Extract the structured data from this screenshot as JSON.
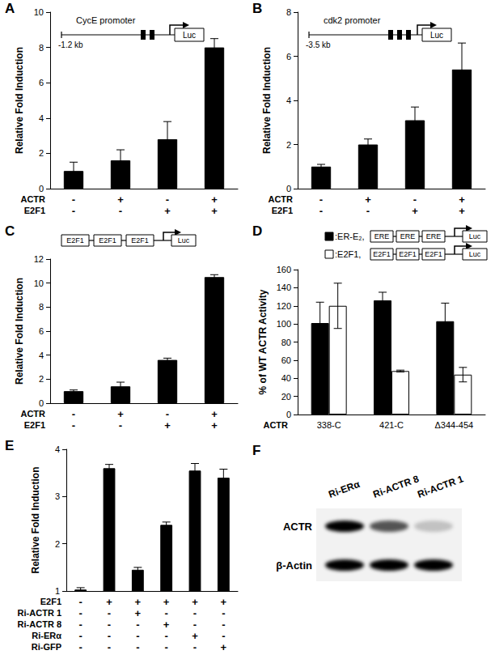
{
  "chart_data": [
    {
      "panel": "A",
      "type": "bar",
      "grid": false,
      "color": "#000000",
      "diagram": {
        "label": "CycE promoter",
        "start": "-1.2 kb",
        "sites": 2,
        "reporter": "Luc"
      },
      "y_label": "Relative Fold Induction",
      "categories": [
        null,
        null,
        null,
        null
      ],
      "conditions": [
        {
          "name": "ACTR",
          "values": [
            "-",
            "+",
            "-",
            "+"
          ]
        },
        {
          "name": "E2F1",
          "values": [
            "-",
            "-",
            "+",
            "+"
          ]
        }
      ],
      "values": [
        1.0,
        1.6,
        2.8,
        8.0
      ],
      "errors": [
        0.5,
        0.6,
        1.0,
        0.5
      ],
      "ylim": [
        0,
        10
      ],
      "yticks": [
        0,
        2,
        4,
        6,
        8,
        10
      ]
    },
    {
      "panel": "B",
      "type": "bar",
      "grid": false,
      "color": "#000000",
      "diagram": {
        "label": "cdk2 promoter",
        "start": "-3.5 kb",
        "sites": 3,
        "reporter": "Luc"
      },
      "y_label": "Relative Fold Induction",
      "categories": [
        null,
        null,
        null,
        null
      ],
      "conditions": [
        {
          "name": "ACTR",
          "values": [
            "-",
            "+",
            "-",
            "+"
          ]
        },
        {
          "name": "E2F1",
          "values": [
            "-",
            "-",
            "+",
            "+"
          ]
        }
      ],
      "values": [
        1.0,
        2.0,
        3.1,
        5.4
      ],
      "errors": [
        0.1,
        0.25,
        0.6,
        1.2
      ],
      "ylim": [
        0,
        8
      ],
      "yticks": [
        0,
        2,
        4,
        6,
        8
      ]
    },
    {
      "panel": "C",
      "type": "bar",
      "grid": false,
      "color": "#000000",
      "diagram": {
        "elements": [
          "E2F1",
          "E2F1",
          "E2F1"
        ],
        "reporter": "Luc"
      },
      "y_label": "Relative Fold Induction",
      "categories": [
        null,
        null,
        null,
        null
      ],
      "conditions": [
        {
          "name": "ACTR",
          "values": [
            "-",
            "+",
            "-",
            "+"
          ]
        },
        {
          "name": "E2F1",
          "values": [
            "-",
            "-",
            "+",
            "+"
          ]
        }
      ],
      "values": [
        1.0,
        1.4,
        3.6,
        10.5
      ],
      "errors": [
        0.1,
        0.35,
        0.15,
        0.2
      ],
      "ylim": [
        0,
        12
      ],
      "yticks": [
        0,
        2,
        4,
        6,
        8,
        10,
        12
      ]
    },
    {
      "panel": "D",
      "type": "bar",
      "grid": false,
      "y_label": "% of WT ACTR Activity",
      "x_label": "ACTR",
      "reporter": "Luc",
      "categories": [
        "338-C",
        "421-C",
        "Δ344-454"
      ],
      "series": [
        {
          "name": ":ER-E₂,",
          "color": "#000000",
          "elements": [
            "ERE",
            "ERE",
            "ERE"
          ],
          "values": [
            101,
            126,
            103
          ],
          "errors": [
            23,
            9,
            20
          ]
        },
        {
          "name": ":E2F1,",
          "color": "#ffffff",
          "elements": [
            "E2F1",
            "E2F1",
            "E2F1"
          ],
          "values": [
            120,
            48,
            44
          ],
          "errors": [
            25,
            1,
            8
          ]
        }
      ],
      "ylim": [
        0,
        160
      ],
      "yticks": [
        0,
        20,
        40,
        60,
        80,
        100,
        120,
        140,
        160
      ]
    },
    {
      "panel": "E",
      "type": "bar",
      "grid": false,
      "color": "#000000",
      "y_label": "Relative Fold Induction",
      "categories": [
        null,
        null,
        null,
        null,
        null,
        null
      ],
      "conditions": [
        {
          "name": "E2F1",
          "values": [
            "-",
            "+",
            "+",
            "+",
            "+",
            "+"
          ]
        },
        {
          "name": "Ri-ACTR 1",
          "values": [
            "-",
            "-",
            "+",
            "-",
            "-",
            "-"
          ]
        },
        {
          "name": "Ri-ACTR 8",
          "values": [
            "-",
            "-",
            "-",
            "+",
            "-",
            "-"
          ]
        },
        {
          "name": "Ri-ERα",
          "values": [
            "-",
            "-",
            "-",
            "-",
            "+",
            "-"
          ]
        },
        {
          "name": "Ri-GFP",
          "values": [
            "-",
            "-",
            "-",
            "-",
            "-",
            "+"
          ]
        }
      ],
      "values": [
        1.03,
        3.6,
        1.45,
        2.4,
        3.55,
        3.4
      ],
      "errors": [
        0.04,
        0.08,
        0.05,
        0.06,
        0.15,
        0.18
      ],
      "ylim": [
        1,
        4
      ],
      "yticks": [
        1,
        2,
        3,
        4
      ]
    }
  ],
  "blot": {
    "panel": "F",
    "lanes": [
      "Ri-ERα",
      "Ri-ACTR 8",
      "Ri-ACTR 1"
    ],
    "rows": [
      {
        "name": "ACTR",
        "intensity": [
          1,
          0.65,
          0.2
        ]
      },
      {
        "name": "β-Actin",
        "intensity": [
          1,
          1,
          1
        ]
      }
    ]
  }
}
